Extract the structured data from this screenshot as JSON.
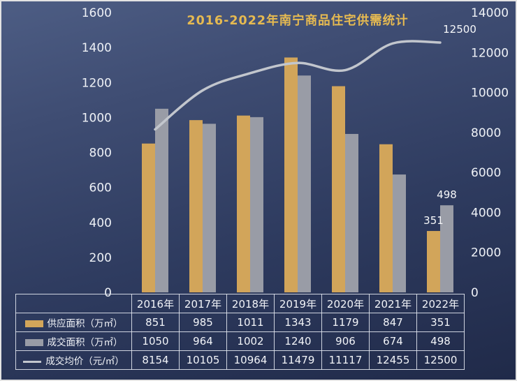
{
  "chart_data": {
    "type": "bar",
    "subtype": "bar+line combo with data table",
    "title": "2016-2022年南宁商品住宅供需统计",
    "categories": [
      "2016年",
      "2017年",
      "2018年",
      "2019年",
      "2020年",
      "2021年",
      "2022年"
    ],
    "series": [
      {
        "name": "供应面积（万㎡）",
        "type": "bar",
        "axis": "left",
        "color": "#d2a55a",
        "values": [
          851,
          985,
          1011,
          1343,
          1179,
          847,
          351
        ]
      },
      {
        "name": "成交面积（万㎡）",
        "type": "bar",
        "axis": "left",
        "color": "#999ca6",
        "values": [
          1050,
          964,
          1002,
          1240,
          906,
          674,
          498
        ]
      },
      {
        "name": "成交均价（元/㎡）",
        "type": "line",
        "axis": "right",
        "color": "#c2c6cd",
        "values": [
          8154,
          10105,
          10964,
          11479,
          11117,
          12455,
          12500
        ]
      }
    ],
    "left_axis": {
      "min": 0,
      "max": 1600,
      "step": 200
    },
    "right_axis": {
      "min": 0,
      "max": 14000,
      "step": 2000
    },
    "annotations": [
      {
        "text": "351",
        "anchor": "bar",
        "series": 0,
        "index": 6
      },
      {
        "text": "498",
        "anchor": "bar",
        "series": 1,
        "index": 6
      },
      {
        "text": "12500",
        "anchor": "line",
        "series": 2,
        "index": 6
      }
    ],
    "grid": false,
    "legend_position": "table-left"
  },
  "colors": {
    "background_top": "#4d5d84",
    "background_bottom": "#202a49",
    "title": "#e6ba51",
    "axis_text": "#eef1f6",
    "table_border": "#e1e6ee",
    "table_text": "#f2f4f8"
  }
}
